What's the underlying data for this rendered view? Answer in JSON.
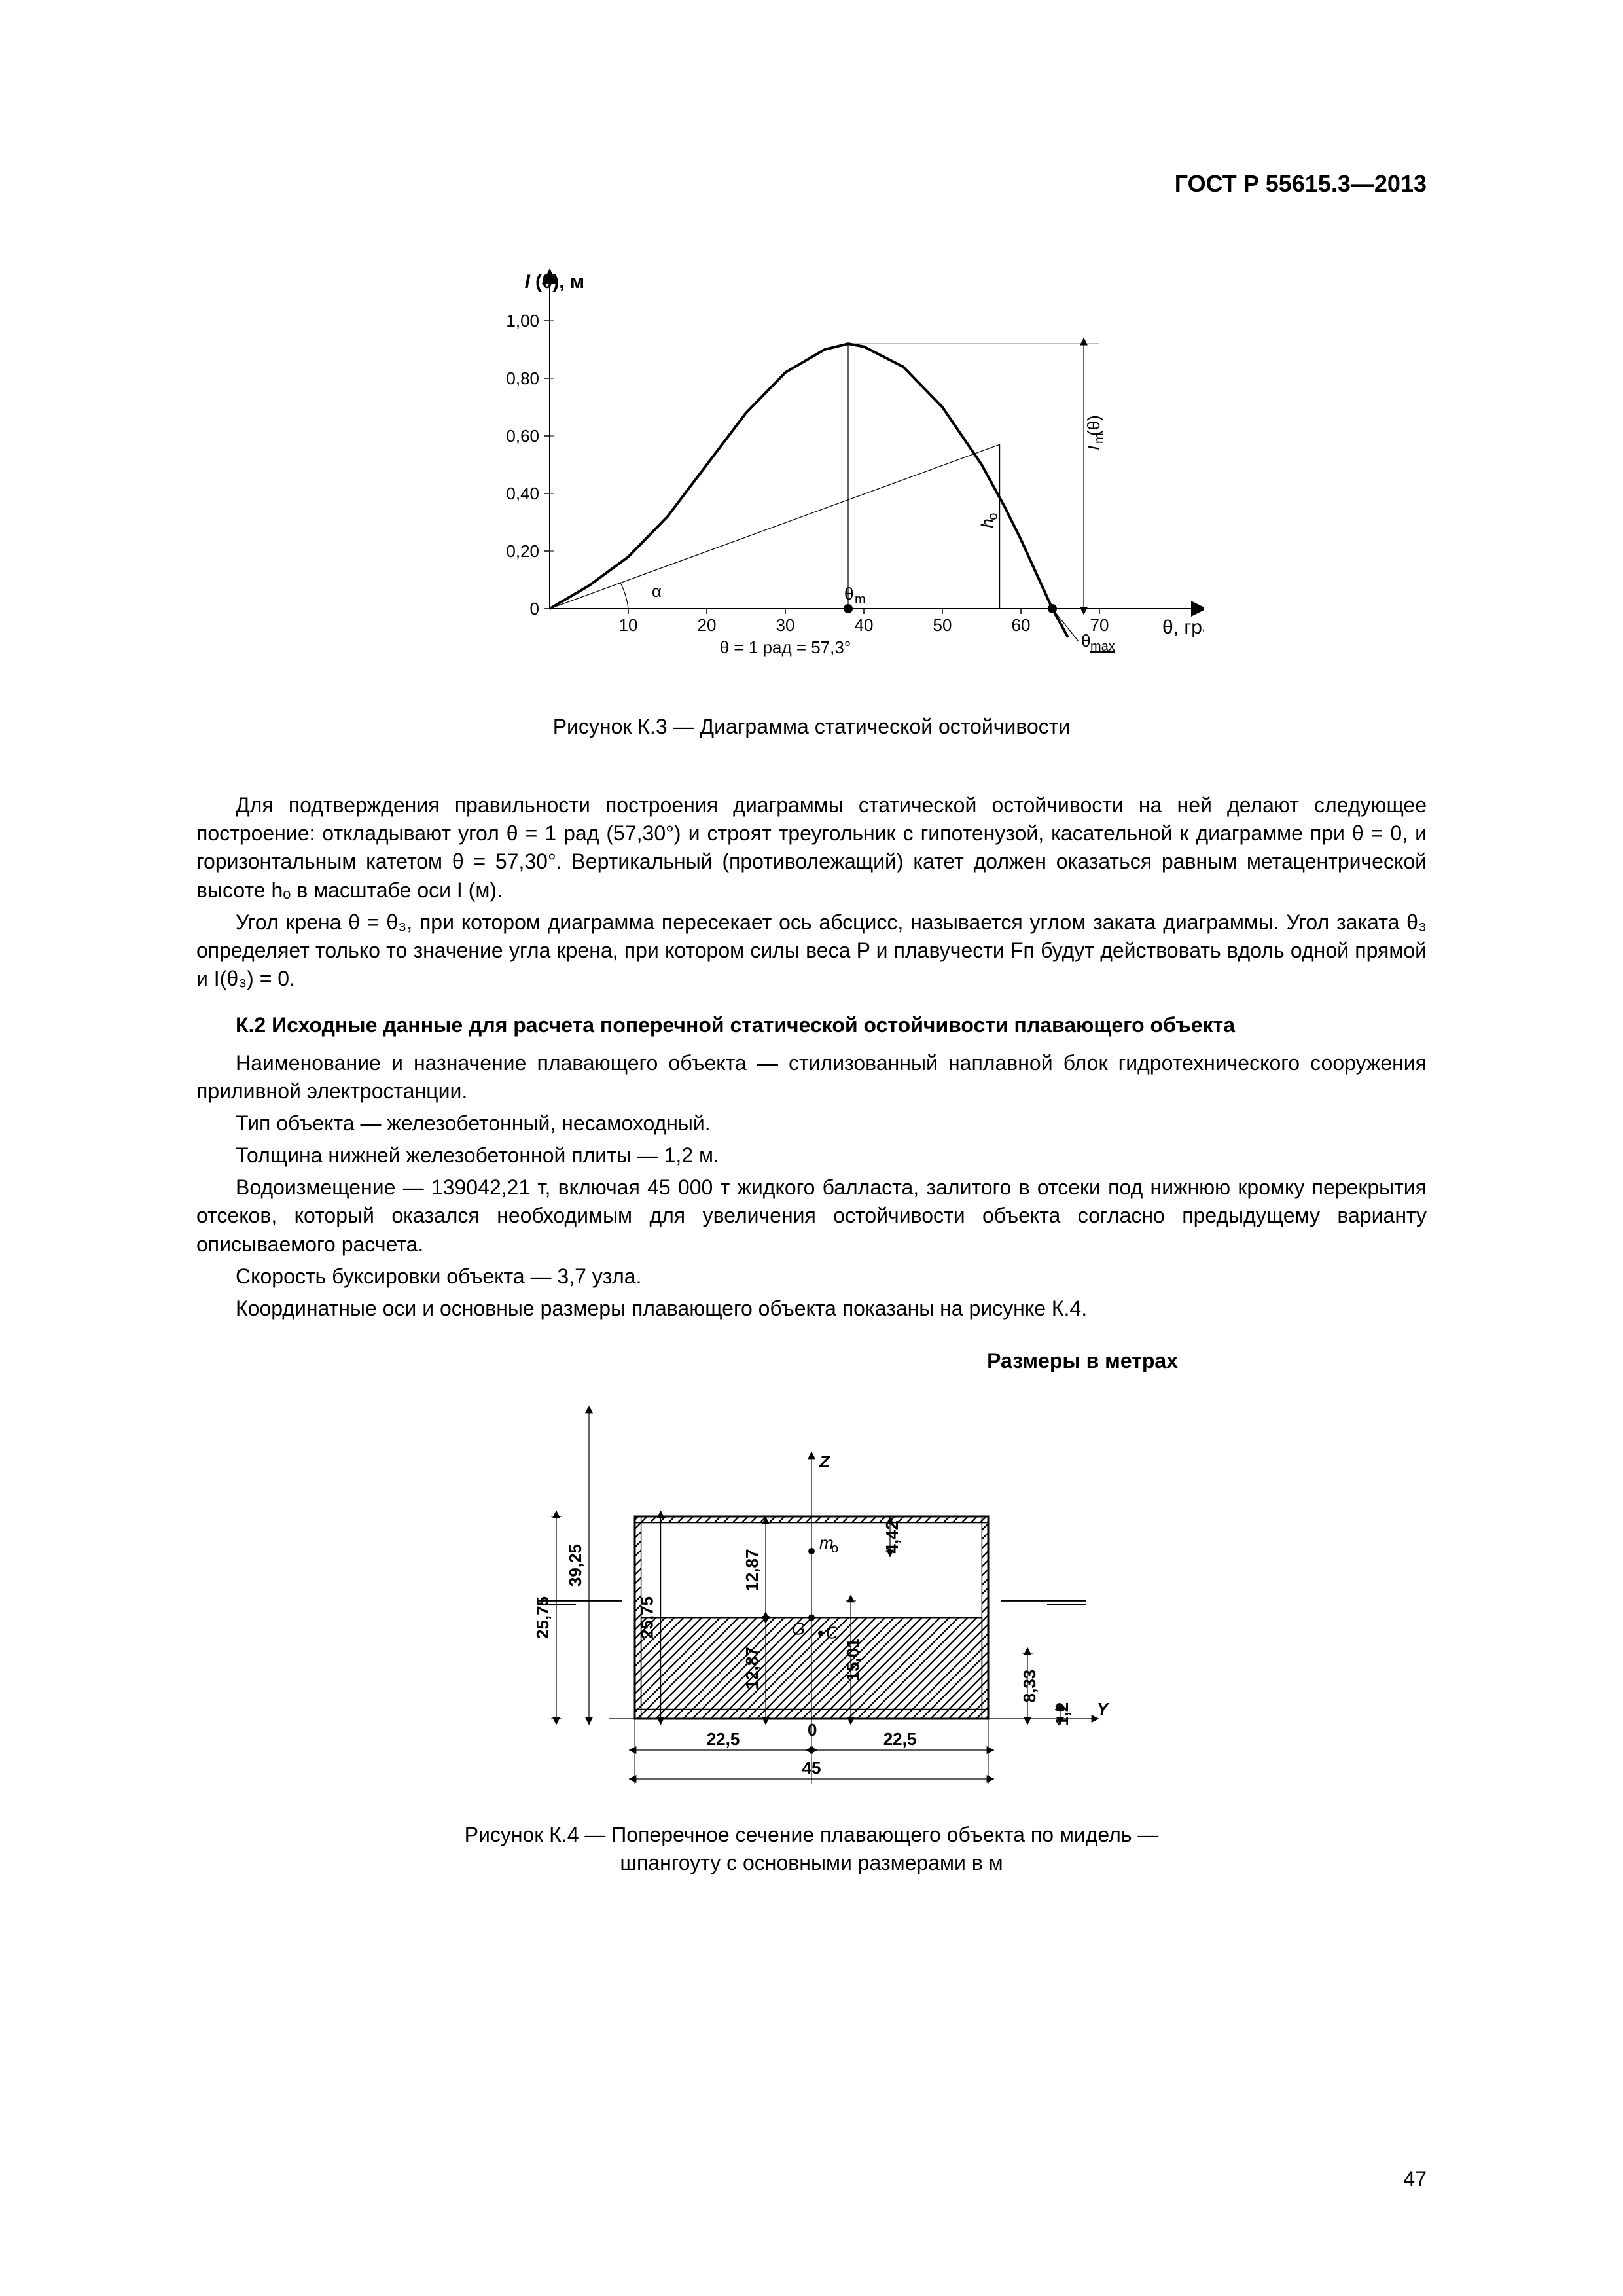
{
  "header": {
    "doc_code": "ГОСТ Р 55615.3—2013"
  },
  "page_number": "47",
  "figK3": {
    "type": "line",
    "caption": "Рисунок К.3 — Диаграмма статической остойчивости",
    "y_axis_label": "I(θ), м",
    "x_axis_label": "θ, град",
    "x_ticks": [
      "10",
      "20",
      "30",
      "40",
      "50",
      "60",
      "70"
    ],
    "y_ticks": [
      "0",
      "0,20",
      "0,40",
      "0,60",
      "0,80",
      "1,00"
    ],
    "xlim": [
      0,
      80
    ],
    "ylim": [
      -0.15,
      1.05
    ],
    "annotations": {
      "alpha": "α",
      "theta_m": "θ",
      "theta_m_sub": "m",
      "theta_max": "θ",
      "theta_max_sub": "max",
      "h_o": "h",
      "h_o_sub": "o",
      "I_m_theta": "I",
      "I_m_theta_sub": "m",
      "bottom_note": "θ = 1 рад = 57,3°"
    },
    "curve_points_deg_m": [
      [
        0,
        0
      ],
      [
        5,
        0.08
      ],
      [
        10,
        0.18
      ],
      [
        15,
        0.32
      ],
      [
        20,
        0.5
      ],
      [
        25,
        0.68
      ],
      [
        30,
        0.82
      ],
      [
        35,
        0.9
      ],
      [
        38,
        0.92
      ],
      [
        40,
        0.91
      ],
      [
        45,
        0.84
      ],
      [
        50,
        0.7
      ],
      [
        55,
        0.5
      ],
      [
        58,
        0.35
      ],
      [
        60,
        0.24
      ],
      [
        63,
        0.06
      ],
      [
        64,
        0.0
      ],
      [
        66,
        -0.1
      ]
    ],
    "tangent_line_deg_m": [
      [
        0,
        0
      ],
      [
        57.3,
        0.57
      ]
    ],
    "theta_m_deg": 38,
    "theta_max_deg": 64,
    "colors": {
      "stroke": "#000000",
      "bg": "#ffffff"
    },
    "line_widths": {
      "curve": 4,
      "axis": 2,
      "thin": 1.2
    },
    "fontsize_axis": 26,
    "fontsize_label": 30
  },
  "paragraphs": {
    "p1": "Для подтверждения правильности построения диаграммы статической остойчивости на ней делают следующее построение: откладывают угол θ = 1 рад (57,30°) и строят треугольник с гипотенузой, касательной к диаграмме при θ = 0, и горизонтальным катетом θ = 57,30°. Вертикальный (противолежащий) катет должен оказаться равным метацентрической высоте hₒ в масштабе оси I (м).",
    "p2": "Угол крена θ = θ₃, при котором диаграмма пересекает ось абсцисс, называется углом заката диаграммы. Угол заката θ₃ определяет только то значение угла крена, при котором силы веса P и плавучести Fп будут действовать вдоль одной прямой и I(θ₃) = 0.",
    "sectionK2": "К.2  Исходные данные для расчета поперечной статической остойчивости плавающего объекта",
    "p3": "Наименование и назначение плавающего объекта — стилизованный наплавной блок гидротехнического сооружения приливной электростанции.",
    "p4": "Тип объекта — железобетонный, несамоходный.",
    "p5": "Толщина нижней железобетонной плиты — 1,2 м.",
    "p6": "Водоизмещение — 139042,21 т, включая 45 000 т жидкого балласта, залитого в отсеки под нижнюю кромку перекрытия отсеков, который оказался необходимым для увеличения остойчивости объекта согласно предыдущему варианту описываемого расчета.",
    "p7": "Скорость буксировки объекта — 3,7 узла.",
    "p8": "Координатные оси и основные размеры плавающего объекта показаны на рисунке К.4."
  },
  "figK4": {
    "type": "diagram",
    "size_label": "Размеры в метрах",
    "caption_line1": "Рисунок  К.4 — Поперечное сечение плавающего объекта по мидель —",
    "caption_line2": "шпангоуту с основными размерами в м",
    "dimensions": {
      "width_total": "45",
      "half_width": "22,5",
      "height_outer_left": "25,75",
      "height_inner": "25,75",
      "height_39_25": "39,25",
      "h_12_87_upper": "12,87",
      "h_12_87_lower": "12,87",
      "h_4_42": "4,42",
      "h_15_01": "15,01",
      "h_8_33": "8,33",
      "h_1_2": "1,2"
    },
    "labels": {
      "Z": "Z",
      "Y": "Y",
      "O": "0",
      "G": "G",
      "C": "C",
      "m_o": "m",
      "m_o_sub": "o"
    },
    "colors": {
      "stroke": "#000000",
      "hatch": "#000000",
      "bg": "#ffffff"
    },
    "line_widths": {
      "frame": 3,
      "thin": 1.2
    },
    "fontsize": 26
  }
}
